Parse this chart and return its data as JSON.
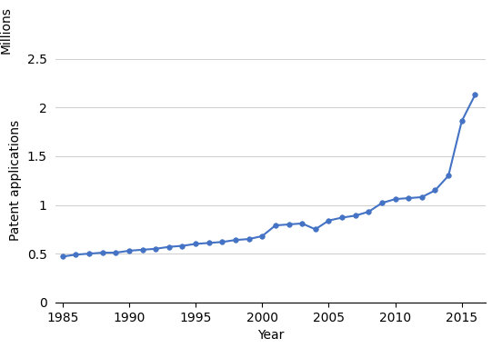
{
  "years": [
    1985,
    1986,
    1987,
    1988,
    1989,
    1990,
    1991,
    1992,
    1993,
    1994,
    1995,
    1996,
    1997,
    1998,
    1999,
    2000,
    2001,
    2002,
    2003,
    2004,
    2005,
    2006,
    2007,
    2008,
    2009,
    2010,
    2011,
    2012,
    2013,
    2014,
    2015,
    2016
  ],
  "values": [
    0.47,
    0.49,
    0.5,
    0.51,
    0.51,
    0.53,
    0.54,
    0.55,
    0.57,
    0.58,
    0.6,
    0.61,
    0.62,
    0.64,
    0.65,
    0.68,
    0.79,
    0.8,
    0.81,
    0.75,
    0.84,
    0.87,
    0.89,
    0.93,
    1.02,
    1.06,
    1.07,
    1.08,
    1.15,
    1.3,
    1.86,
    2.13
  ],
  "line_color": "#4472C4",
  "marker_color": "#4472C4",
  "marker_size": 4,
  "line_width": 1.5,
  "xlabel": "Year",
  "ylabel": "Patent applications",
  "ylabel_top": "Millions",
  "xlim": [
    1984.5,
    2016.8
  ],
  "ylim": [
    0,
    2.5
  ],
  "yticks": [
    0,
    0.5,
    1,
    1.5,
    2,
    2.5
  ],
  "xticks": [
    1985,
    1990,
    1995,
    2000,
    2005,
    2010,
    2015
  ],
  "grid_color": "#d0d0d0",
  "background_color": "#ffffff",
  "axis_fontsize": 10,
  "tick_fontsize": 10,
  "millions_fontsize": 10
}
